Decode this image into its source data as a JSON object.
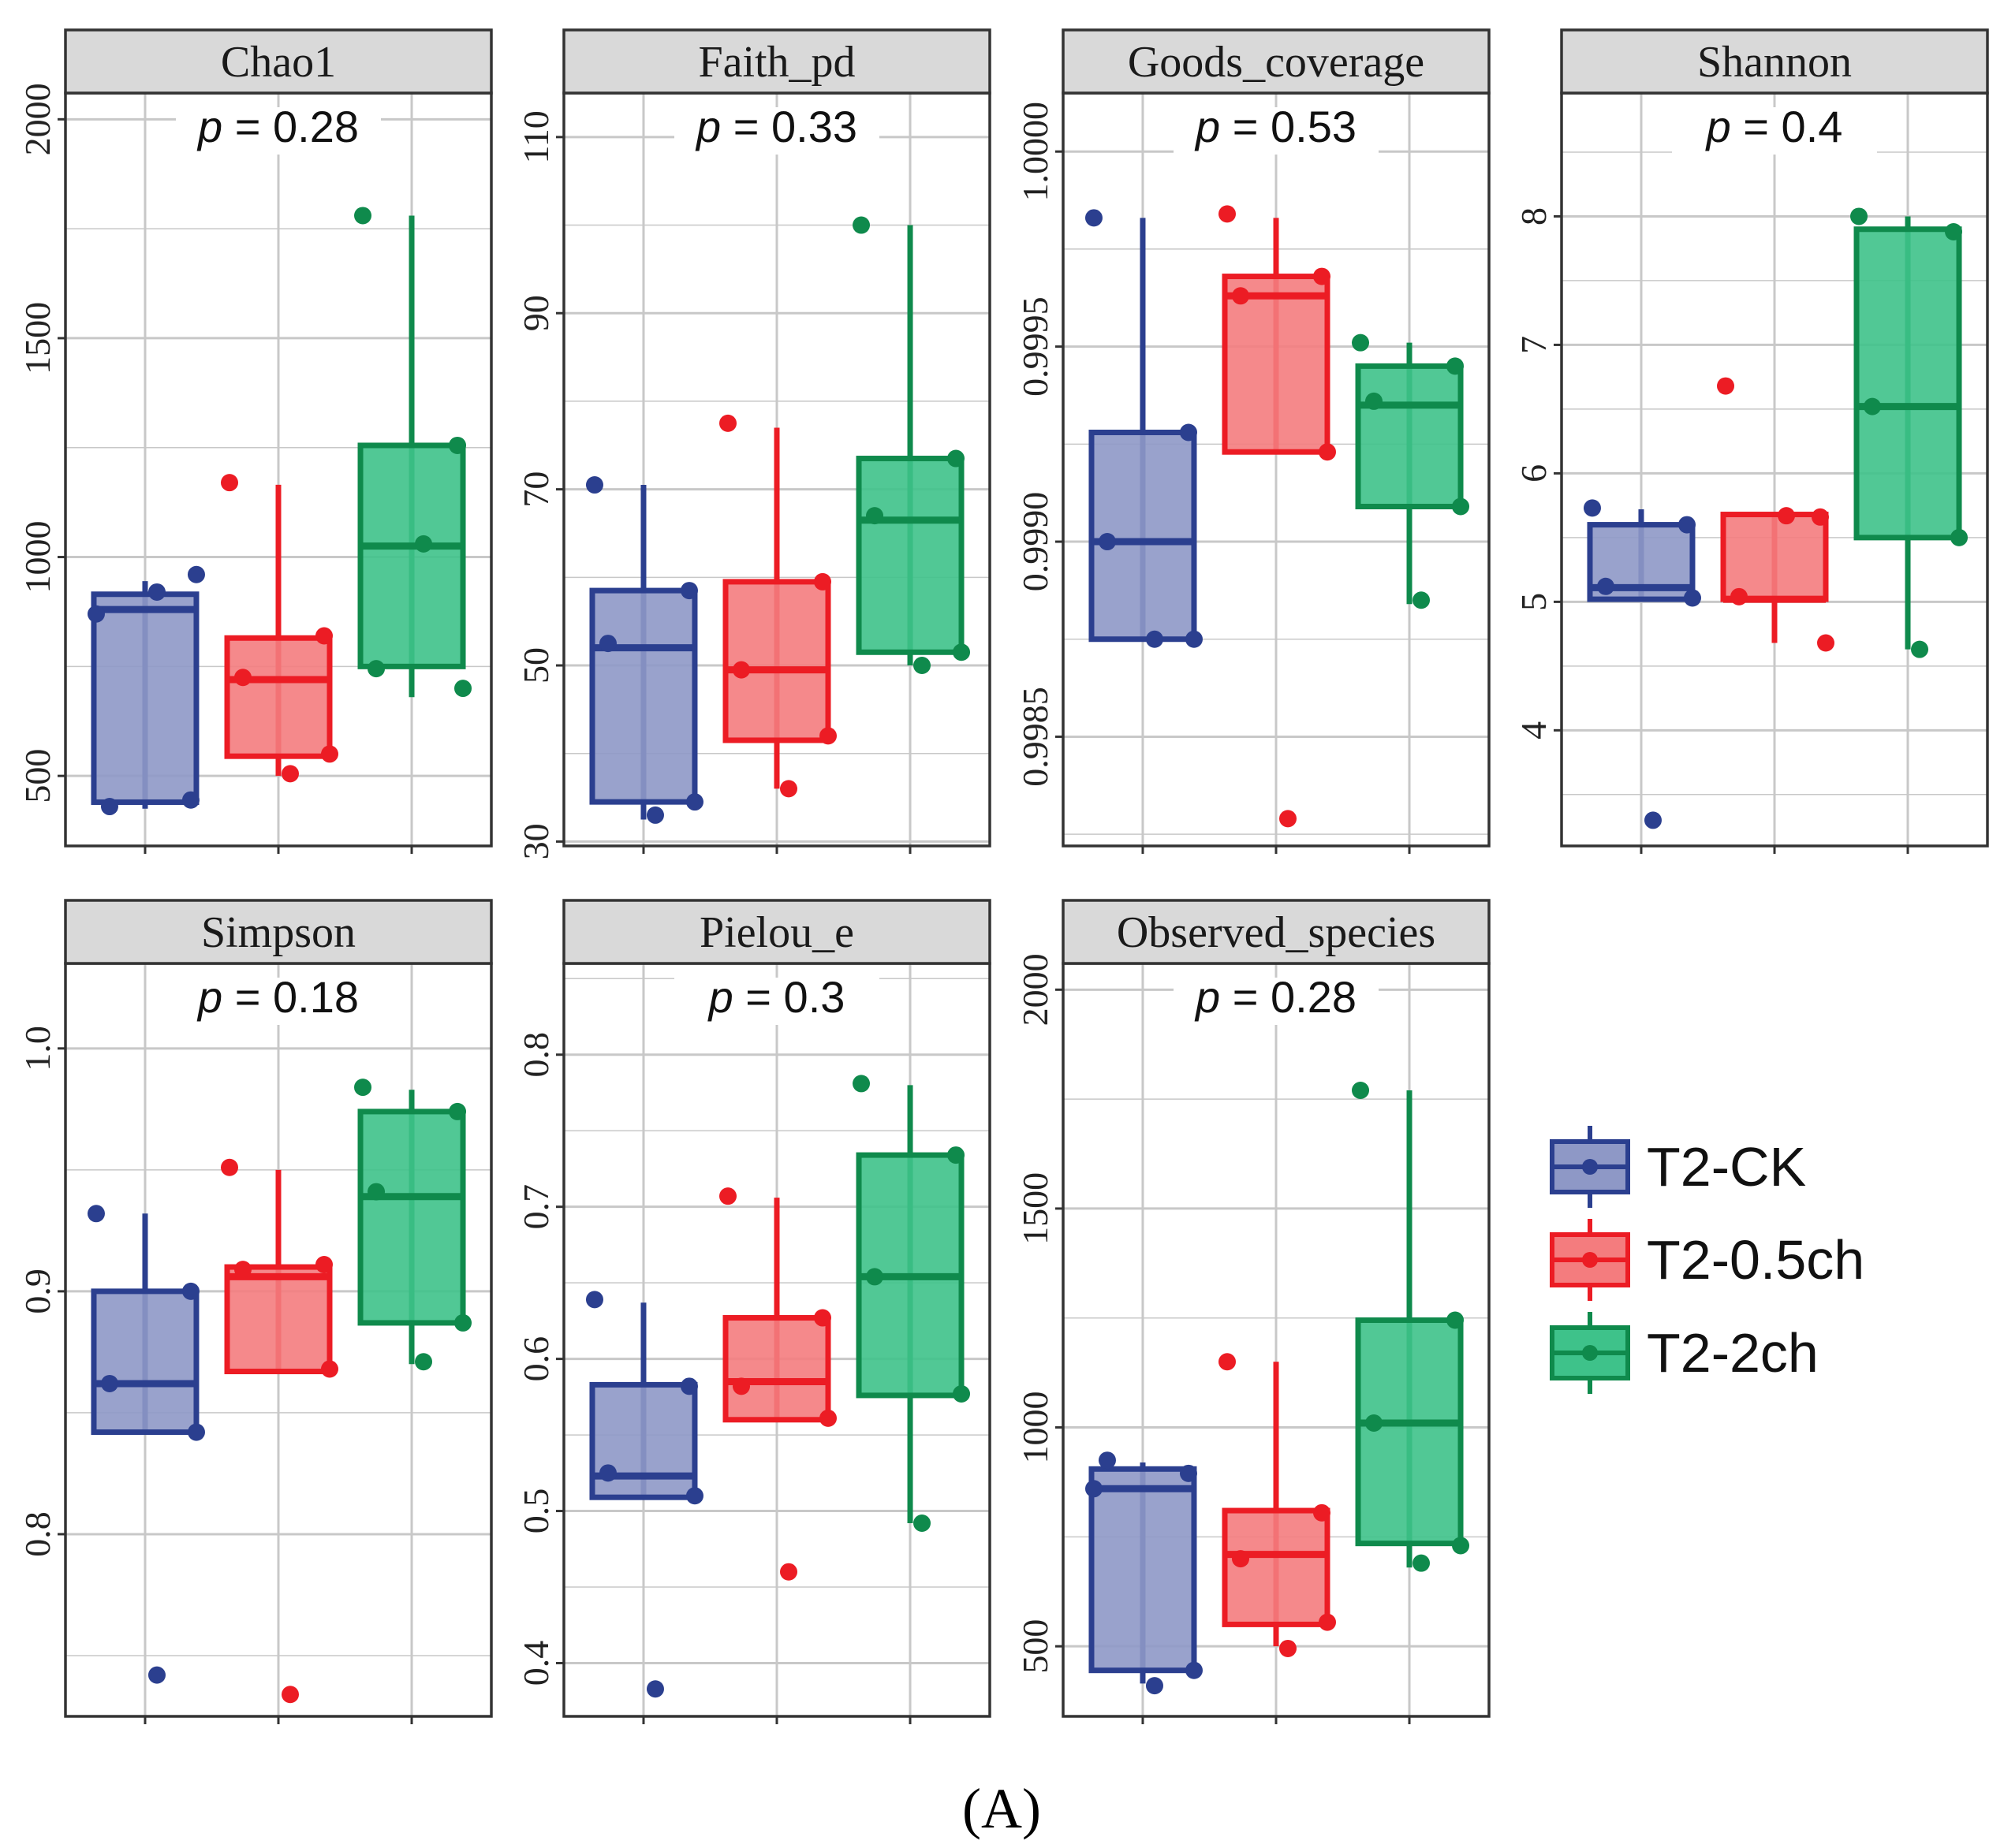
{
  "figure_label": "(A)",
  "colors": {
    "T2-CK": {
      "line": "#2b3f8f",
      "fill": "#8e98c6",
      "point": "#2b3f8f"
    },
    "T2-0.5ch": {
      "line": "#ec1c24",
      "fill": "#f47c7e",
      "point": "#ec1c24"
    },
    "T2-2ch": {
      "line": "#0f8a4c",
      "fill": "#3ec28a",
      "point": "#0f8a4c"
    },
    "grid": "#c8c8c8",
    "strip_bg": "#d9d9d9"
  },
  "legend": {
    "items": [
      {
        "key": "T2-CK",
        "label": "T2-CK"
      },
      {
        "key": "T2-0.5ch",
        "label": "T2-0.5ch"
      },
      {
        "key": "T2-2ch",
        "label": "T2-2ch"
      }
    ]
  },
  "chart_data": [
    {
      "type": "box",
      "title": "Chao1",
      "p_label": "p",
      "p_value": "= 0.28",
      "ylim": [
        340,
        2060
      ],
      "yticks": [
        500,
        1000,
        1500,
        2000
      ],
      "groups": [
        {
          "key": "T2-CK",
          "q1": 440,
          "median": 880,
          "q3": 915,
          "whisker_low": 425,
          "whisker_high": 945,
          "points": [
            870,
            445,
            430,
            960,
            920
          ]
        },
        {
          "key": "T2-0.5ch",
          "q1": 545,
          "median": 720,
          "q3": 815,
          "whisker_low": 500,
          "whisker_high": 1165,
          "points": [
            1170,
            820,
            725,
            550,
            505
          ]
        },
        {
          "key": "T2-2ch",
          "q1": 750,
          "median": 1025,
          "q3": 1255,
          "whisker_low": 680,
          "whisker_high": 1780,
          "points": [
            1780,
            1255,
            745,
            700,
            1030
          ]
        }
      ]
    },
    {
      "type": "box",
      "title": "Faith_pd",
      "p_label": "p",
      "p_value": "= 0.33",
      "ylim": [
        29.5,
        115
      ],
      "yticks": [
        30,
        50,
        70,
        90,
        110
      ],
      "groups": [
        {
          "key": "T2-CK",
          "q1": 34.5,
          "median": 52,
          "q3": 58.5,
          "whisker_low": 32.5,
          "whisker_high": 70.5,
          "points": [
            70.5,
            58.5,
            52.5,
            34.5,
            33.0
          ]
        },
        {
          "key": "T2-0.5ch",
          "q1": 41.5,
          "median": 49.5,
          "q3": 59.5,
          "whisker_low": 36,
          "whisker_high": 77,
          "points": [
            77.5,
            59.5,
            49.5,
            42.0,
            36.0
          ]
        },
        {
          "key": "T2-2ch",
          "q1": 51.5,
          "median": 66.5,
          "q3": 73.5,
          "whisker_low": 50,
          "whisker_high": 100,
          "points": [
            100,
            73.5,
            67.0,
            51.5,
            50.0
          ]
        }
      ]
    },
    {
      "type": "box",
      "title": "Goods_coverage",
      "p_label": "p",
      "p_value": "= 0.53",
      "ylim": [
        0.99822,
        1.00015
      ],
      "yticks": [
        0.9985,
        0.999,
        0.9995,
        1.0
      ],
      "tick_labels": [
        "0.9985",
        "0.9990",
        "0.9995",
        "1.0000"
      ],
      "groups": [
        {
          "key": "T2-CK",
          "q1": 0.99875,
          "median": 0.999,
          "q3": 0.99928,
          "whisker_low": 0.99875,
          "whisker_high": 0.99983,
          "points": [
            0.99983,
            0.99928,
            0.999,
            0.99875,
            0.99875
          ]
        },
        {
          "key": "T2-0.5ch",
          "q1": 0.99923,
          "median": 0.99963,
          "q3": 0.99968,
          "whisker_low": 0.99923,
          "whisker_high": 0.99983,
          "points": [
            0.99984,
            0.99968,
            0.99963,
            0.99923,
            0.99829
          ]
        },
        {
          "key": "T2-2ch",
          "q1": 0.99909,
          "median": 0.99935,
          "q3": 0.99945,
          "whisker_low": 0.99884,
          "whisker_high": 0.99951,
          "points": [
            0.99951,
            0.99945,
            0.99936,
            0.99909,
            0.99885
          ]
        }
      ]
    },
    {
      "type": "box",
      "title": "Shannon",
      "p_label": "p",
      "p_value": "= 0.4",
      "ylim": [
        3.1,
        8.96
      ],
      "yticks": [
        4,
        5,
        6,
        7,
        8
      ],
      "groups": [
        {
          "key": "T2-CK",
          "q1": 5.02,
          "median": 5.11,
          "q3": 5.6,
          "whisker_low": 5.02,
          "whisker_high": 5.72,
          "points": [
            5.73,
            5.6,
            5.12,
            5.03,
            3.3
          ]
        },
        {
          "key": "T2-0.5ch",
          "q1": 5.02,
          "median": 5.02,
          "q3": 5.68,
          "whisker_low": 4.68,
          "whisker_high": 5.68,
          "points": [
            6.68,
            5.66,
            5.04,
            4.68,
            5.67
          ]
        },
        {
          "key": "T2-2ch",
          "q1": 5.5,
          "median": 6.52,
          "q3": 7.9,
          "whisker_low": 4.63,
          "whisker_high": 8.0,
          "points": [
            8.0,
            7.88,
            6.52,
            5.5,
            4.63
          ]
        }
      ]
    },
    {
      "type": "box",
      "title": "Simpson",
      "p_label": "p",
      "p_value": "= 0.18",
      "ylim": [
        0.725,
        1.035
      ],
      "yticks": [
        0.8,
        0.9,
        1.0
      ],
      "tick_labels": [
        "0.8",
        "0.9",
        "1.0"
      ],
      "groups": [
        {
          "key": "T2-CK",
          "q1": 0.842,
          "median": 0.862,
          "q3": 0.9,
          "whisker_low": 0.842,
          "whisker_high": 0.932,
          "points": [
            0.932,
            0.9,
            0.862,
            0.842,
            0.742
          ]
        },
        {
          "key": "T2-0.5ch",
          "q1": 0.867,
          "median": 0.906,
          "q3": 0.91,
          "whisker_low": 0.867,
          "whisker_high": 0.95,
          "points": [
            0.951,
            0.911,
            0.909,
            0.868,
            0.734
          ]
        },
        {
          "key": "T2-2ch",
          "q1": 0.887,
          "median": 0.939,
          "q3": 0.974,
          "whisker_low": 0.87,
          "whisker_high": 0.983,
          "points": [
            0.984,
            0.974,
            0.941,
            0.887,
            0.871
          ]
        }
      ]
    },
    {
      "type": "box",
      "title": "Pielou_e",
      "p_label": "p",
      "p_value": "= 0.3",
      "ylim": [
        0.365,
        0.86
      ],
      "yticks": [
        0.4,
        0.5,
        0.6,
        0.7,
        0.8
      ],
      "tick_labels": [
        "0.4",
        "0.5",
        "0.6",
        "0.7",
        "0.8"
      ],
      "groups": [
        {
          "key": "T2-CK",
          "q1": 0.509,
          "median": 0.523,
          "q3": 0.583,
          "whisker_low": 0.509,
          "whisker_high": 0.637,
          "points": [
            0.639,
            0.582,
            0.525,
            0.51,
            0.383
          ]
        },
        {
          "key": "T2-0.5ch",
          "q1": 0.56,
          "median": 0.585,
          "q3": 0.627,
          "whisker_low": 0.56,
          "whisker_high": 0.706,
          "points": [
            0.707,
            0.627,
            0.582,
            0.561,
            0.46
          ]
        },
        {
          "key": "T2-2ch",
          "q1": 0.576,
          "median": 0.654,
          "q3": 0.734,
          "whisker_low": 0.492,
          "whisker_high": 0.78,
          "points": [
            0.781,
            0.734,
            0.654,
            0.577,
            0.492
          ]
        }
      ]
    },
    {
      "type": "box",
      "title": "Observed_species",
      "p_label": "p",
      "p_value": "= 0.28",
      "ylim": [
        340,
        2060
      ],
      "yticks": [
        500,
        1000,
        1500,
        2000
      ],
      "groups": [
        {
          "key": "T2-CK",
          "q1": 445,
          "median": 860,
          "q3": 905,
          "whisker_low": 415,
          "whisker_high": 920,
          "points": [
            860,
            895,
            925,
            445,
            410
          ]
        },
        {
          "key": "T2-0.5ch",
          "q1": 550,
          "median": 710,
          "q3": 810,
          "whisker_low": 500,
          "whisker_high": 1150,
          "points": [
            1150,
            805,
            700,
            555,
            495
          ]
        },
        {
          "key": "T2-2ch",
          "q1": 735,
          "median": 1010,
          "q3": 1245,
          "whisker_low": 680,
          "whisker_high": 1770,
          "points": [
            1770,
            1245,
            1010,
            730,
            690
          ]
        }
      ]
    }
  ]
}
